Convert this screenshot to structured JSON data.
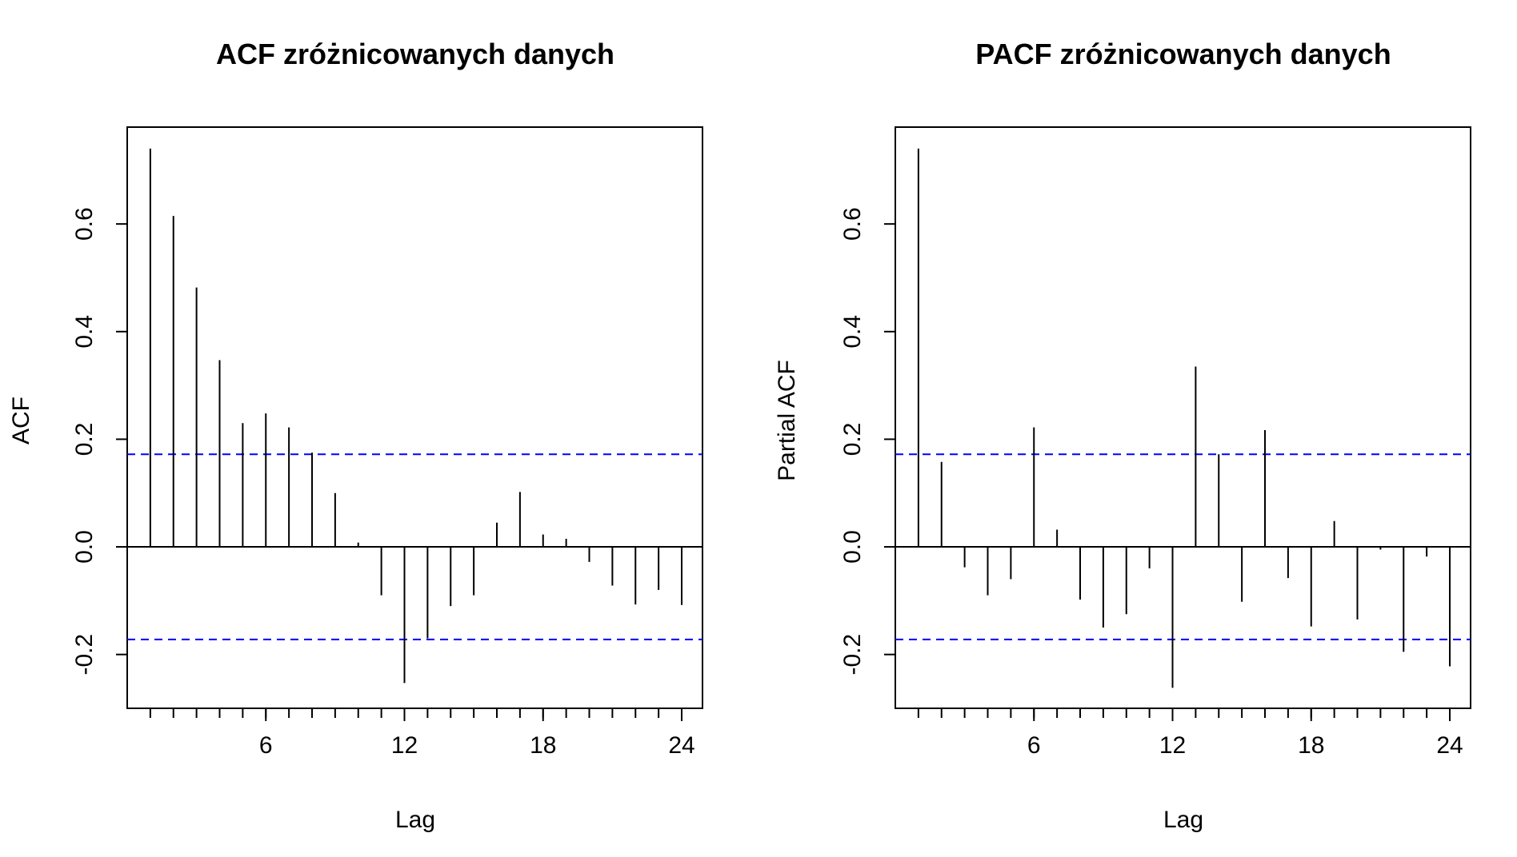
{
  "chart_data": [
    {
      "type": "bar",
      "title": "ACF zróżnicowanych danych",
      "xlabel": "Lag",
      "ylabel": "ACF",
      "xlim": [
        0,
        24.9
      ],
      "ylim": [
        -0.3,
        0.78
      ],
      "xticks": [
        6,
        12,
        18,
        24
      ],
      "xminor_ticks": [
        1,
        2,
        3,
        4,
        5,
        6,
        7,
        8,
        9,
        10,
        11,
        12,
        13,
        14,
        15,
        16,
        17,
        18,
        19,
        20,
        21,
        22,
        23,
        24
      ],
      "yticks": [
        -0.2,
        0.0,
        0.2,
        0.4,
        0.6
      ],
      "ytick_labels": [
        "-0.2",
        "0.0",
        "0.2",
        "0.4",
        "0.6"
      ],
      "xtick_labels": [
        "6",
        "12",
        "18",
        "24"
      ],
      "confidence_bound": 0.172,
      "confidence_color": "#0000ff",
      "grid": false,
      "x": [
        1,
        2,
        3,
        4,
        5,
        6,
        7,
        8,
        9,
        10,
        11,
        12,
        13,
        14,
        15,
        16,
        17,
        18,
        19,
        20,
        21,
        22,
        23,
        24
      ],
      "values": [
        0.74,
        0.615,
        0.482,
        0.347,
        0.23,
        0.248,
        0.222,
        0.175,
        0.1,
        0.008,
        -0.09,
        -0.253,
        -0.17,
        -0.11,
        -0.09,
        0.045,
        0.102,
        0.023,
        0.015,
        -0.028,
        -0.072,
        -0.107,
        -0.08,
        -0.108
      ]
    },
    {
      "type": "bar",
      "title": "PACF zróżnicowanych danych",
      "xlabel": "Lag",
      "ylabel": "Partial ACF",
      "xlim": [
        0,
        24.9
      ],
      "ylim": [
        -0.3,
        0.78
      ],
      "xticks": [
        6,
        12,
        18,
        24
      ],
      "xminor_ticks": [
        1,
        2,
        3,
        4,
        5,
        6,
        7,
        8,
        9,
        10,
        11,
        12,
        13,
        14,
        15,
        16,
        17,
        18,
        19,
        20,
        21,
        22,
        23,
        24
      ],
      "yticks": [
        -0.2,
        0.0,
        0.2,
        0.4,
        0.6
      ],
      "ytick_labels": [
        "-0.2",
        "0.0",
        "0.2",
        "0.4",
        "0.6"
      ],
      "xtick_labels": [
        "6",
        "12",
        "18",
        "24"
      ],
      "confidence_bound": 0.172,
      "confidence_color": "#0000ff",
      "grid": false,
      "x": [
        1,
        2,
        3,
        4,
        5,
        6,
        7,
        8,
        9,
        10,
        11,
        12,
        13,
        14,
        15,
        16,
        17,
        18,
        19,
        20,
        21,
        22,
        23,
        24
      ],
      "values": [
        0.74,
        0.158,
        -0.038,
        -0.09,
        -0.06,
        0.222,
        0.032,
        -0.098,
        -0.15,
        -0.125,
        -0.04,
        -0.262,
        0.335,
        0.172,
        -0.102,
        0.217,
        -0.058,
        -0.148,
        0.048,
        -0.135,
        -0.005,
        -0.195,
        -0.018,
        -0.222
      ]
    }
  ]
}
